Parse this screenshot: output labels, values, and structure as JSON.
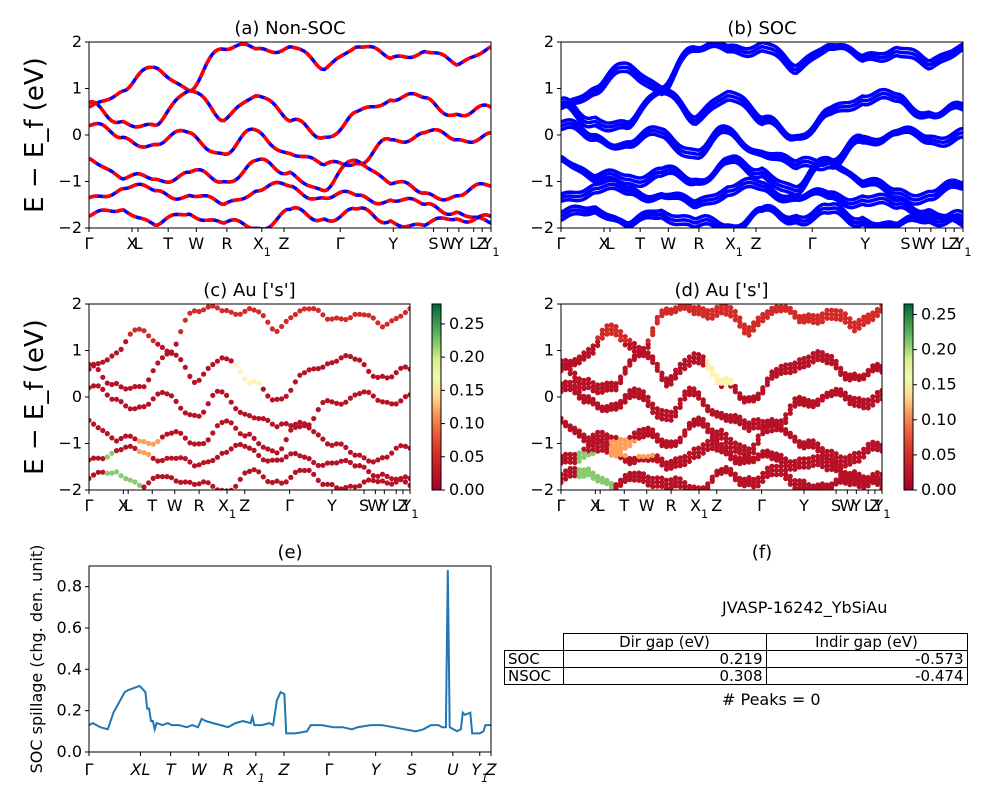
{
  "panels": {
    "a": {
      "title": "(a) Non-SOC"
    },
    "b": {
      "title": "(b) SOC"
    },
    "c": {
      "title": "(c)  Au ['s']"
    },
    "d": {
      "title": "(d) Au ['s']"
    },
    "e": {
      "title": "(e)"
    },
    "f": {
      "title": "(f)"
    }
  },
  "ylabel": "E − E_f (eV)",
  "band_ticks": [
    "Γ",
    "X",
    "L",
    "T",
    "W",
    "R",
    "X1",
    "Z",
    "Γ",
    "Y",
    "S",
    "W",
    "Y",
    "L",
    "Z",
    "Y1"
  ],
  "colorbar_c": {
    "ticks": [
      "0.00",
      "0.05",
      "0.10",
      "0.15",
      "0.20",
      "0.25"
    ],
    "max": 0.28
  },
  "colorbar_d": {
    "ticks": [
      "0.00",
      "0.05",
      "0.10",
      "0.15",
      "0.20",
      "0.25"
    ],
    "max": 0.265
  },
  "table": {
    "material": "JVASP-16242_YbSiAu",
    "headers": [
      "Dir gap (eV)",
      "Indir gap (eV)"
    ],
    "rows": [
      {
        "label": "SOC",
        "dir": "0.219",
        "indir": "-0.573"
      },
      {
        "label": "NSOC",
        "dir": "0.308",
        "indir": "-0.474"
      }
    ],
    "peaks": "# Peaks = 0"
  },
  "colors": {
    "nonsoc_red": "#ff0000",
    "nonsoc_blue": "#0000ff",
    "soc_blue": "#0000ff",
    "spillage": "#1f77b4"
  },
  "chart_data": [
    {
      "panel": "a",
      "type": "line",
      "title": "(a) Non-SOC",
      "ylabel": "E − E_f (eV)",
      "ylim": [
        -2,
        2
      ],
      "yticks": [
        -2,
        -1,
        0,
        1,
        2
      ],
      "xticks": [
        "Γ",
        "X",
        "L",
        "T",
        "W",
        "R",
        "X1",
        "Z",
        "Γ",
        "Y",
        "S",
        "W",
        "Y",
        "L",
        "Z",
        "Y1"
      ],
      "series": [
        {
          "bands": [
            {
              "anchors": [
                0.6,
                0.95,
                1.45,
                0.95,
                1.85,
                1.85,
                1.9,
                1.4,
                1.9,
                1.65,
                1.8,
                1.5,
                1.9
              ]
            },
            {
              "anchors": [
                0.7,
                0.3,
                0.2,
                0.95,
                0.3,
                0.85,
                0.3,
                -0.05,
                0.5,
                0.75,
                0.8,
                0.45,
                0.6
              ]
            },
            {
              "anchors": [
                0.2,
                -0.05,
                -0.2,
                0.05,
                -0.4,
                0.1,
                -0.4,
                -0.65,
                -0.6,
                -0.1,
                0.05,
                -0.1,
                0.05
              ]
            },
            {
              "anchors": [
                -0.5,
                -0.95,
                -0.95,
                -0.8,
                -1.0,
                -0.55,
                -0.8,
                -1.2,
                -0.55,
                -1.05,
                -1.25,
                -1.3,
                -1.1
              ]
            },
            {
              "anchors": [
                -1.35,
                -1.15,
                -1.2,
                -1.3,
                -1.5,
                -1.2,
                -1.1,
                -1.35,
                -1.3,
                -1.4,
                -1.5,
                -1.65,
                -1.9
              ]
            },
            {
              "anchors": [
                -1.75,
                -1.6,
                -1.95,
                -1.7,
                -1.9,
                -2.0,
                -1.6,
                -1.8,
                -1.6,
                -1.85,
                -1.95,
                -1.8,
                -1.75
              ]
            }
          ]
        }
      ]
    },
    {
      "panel": "b",
      "type": "line",
      "title": "(b) SOC",
      "ylabel": "",
      "ylim": [
        -2,
        2
      ],
      "yticks": [
        -2,
        -1,
        0,
        1,
        2
      ],
      "xticks": [
        "Γ",
        "X",
        "L",
        "T",
        "W",
        "R",
        "X1",
        "Z",
        "Γ",
        "Y",
        "S",
        "W",
        "Y",
        "L",
        "Z",
        "Y1"
      ],
      "series": [
        {
          "name": "",
          "bands": "same as (a) with spin-orbit splitting"
        }
      ]
    },
    {
      "panel": "c",
      "type": "scatter",
      "title": "(c)  Au ['s']",
      "ylim": [
        -2,
        2
      ],
      "colorbar": [
        0.0,
        0.28
      ],
      "series": [
        {
          "bands": "as (a)",
          "weight_low": 0.0,
          "weight_high": 0.26
        }
      ]
    },
    {
      "panel": "d",
      "type": "scatter",
      "title": "(d) Au ['s']",
      "ylim": [
        -2,
        2
      ],
      "colorbar": [
        0.0,
        0.265
      ],
      "series": [
        {
          "bands": "as (b)",
          "weight_low": 0.0,
          "weight_high": 0.25
        }
      ]
    },
    {
      "panel": "e",
      "type": "line",
      "title": "(e)",
      "ylabel": "SOC spillage (chg. den. unit)",
      "ylim": [
        0,
        0.9
      ],
      "yticks": [
        0.0,
        0.2,
        0.4,
        0.6,
        0.8
      ],
      "xticks": [
        "Γ",
        "XL",
        "T",
        "W",
        "R",
        "X1",
        "Z",
        "Γ",
        "Y",
        "S",
        "U",
        "Y1",
        "Z"
      ],
      "series": [
        {
          "points": [
            [
              0,
              0.13
            ],
            [
              2,
              0.14
            ],
            [
              6,
              0.12
            ],
            [
              10,
              0.11
            ],
            [
              13,
              0.19
            ],
            [
              16,
              0.24
            ],
            [
              19,
              0.29
            ],
            [
              21,
              0.3
            ],
            [
              24,
              0.31
            ],
            [
              27,
              0.32
            ],
            [
              30,
              0.29
            ],
            [
              31,
              0.21
            ],
            [
              32,
              0.21
            ],
            [
              33,
              0.15
            ],
            [
              34,
              0.15
            ],
            [
              35,
              0.11
            ],
            [
              36,
              0.14
            ],
            [
              39,
              0.13
            ],
            [
              42,
              0.14
            ],
            [
              44,
              0.13
            ],
            [
              48,
              0.13
            ],
            [
              52,
              0.12
            ],
            [
              55,
              0.13
            ],
            [
              58,
              0.12
            ],
            [
              60,
              0.16
            ],
            [
              62,
              0.15
            ],
            [
              66,
              0.14
            ],
            [
              70,
              0.13
            ],
            [
              74,
              0.12
            ],
            [
              78,
              0.14
            ],
            [
              82,
              0.15
            ],
            [
              86,
              0.14
            ],
            [
              87,
              0.17
            ],
            [
              88,
              0.13
            ],
            [
              92,
              0.13
            ],
            [
              96,
              0.14
            ],
            [
              98,
              0.13
            ],
            [
              100,
              0.25
            ],
            [
              102,
              0.29
            ],
            [
              104,
              0.28
            ],
            [
              105,
              0.09
            ],
            [
              110,
              0.09
            ],
            [
              113,
              0.095
            ],
            [
              116,
              0.1
            ],
            [
              118,
              0.13
            ],
            [
              124,
              0.13
            ],
            [
              130,
              0.12
            ],
            [
              135,
              0.12
            ],
            [
              140,
              0.11
            ],
            [
              143,
              0.12
            ],
            [
              150,
              0.13
            ],
            [
              156,
              0.13
            ],
            [
              162,
              0.12
            ],
            [
              168,
              0.11
            ],
            [
              174,
              0.1
            ],
            [
              178,
              0.11
            ],
            [
              182,
              0.13
            ],
            [
              186,
              0.13
            ],
            [
              188,
              0.12
            ],
            [
              190,
              0.12
            ],
            [
              191,
              0.88
            ],
            [
              192,
              0.12
            ],
            [
              194,
              0.11
            ],
            [
              196,
              0.1
            ],
            [
              198,
              0.11
            ],
            [
              199,
              0.19
            ],
            [
              200,
              0.18
            ],
            [
              203,
              0.19
            ],
            [
              204,
              0.09
            ],
            [
              208,
              0.09
            ],
            [
              210,
              0.1
            ],
            [
              211,
              0.13
            ],
            [
              214,
              0.13
            ]
          ]
        }
      ]
    }
  ]
}
